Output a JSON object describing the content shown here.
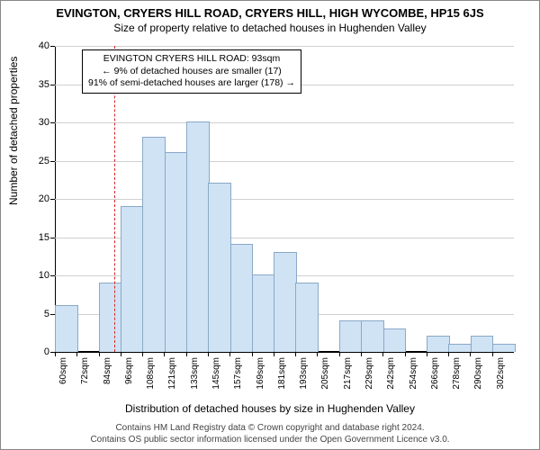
{
  "title_main": "EVINGTON, CRYERS HILL ROAD, CRYERS HILL, HIGH WYCOMBE, HP15 6JS",
  "title_sub": "Size of property relative to detached houses in Hughenden Valley",
  "y_axis": {
    "label": "Number of detached properties",
    "min": 0,
    "max": 40,
    "tick_step": 5,
    "ticks": [
      0,
      5,
      10,
      15,
      20,
      25,
      30,
      35,
      40
    ],
    "grid_color": "#d0d0d0"
  },
  "x_axis": {
    "label": "Distribution of detached houses by size in Hughenden Valley",
    "categories": [
      "60sqm",
      "72sqm",
      "84sqm",
      "96sqm",
      "108sqm",
      "121sqm",
      "133sqm",
      "145sqm",
      "157sqm",
      "169sqm",
      "181sqm",
      "193sqm",
      "205sqm",
      "217sqm",
      "229sqm",
      "242sqm",
      "254sqm",
      "266sqm",
      "278sqm",
      "290sqm",
      "302sqm"
    ]
  },
  "chart": {
    "type": "histogram",
    "bar_color": "#cfe3f5",
    "bar_border_color": "#8aa9c7",
    "values": [
      6,
      0,
      9,
      19,
      28,
      26,
      30,
      22,
      14,
      10,
      13,
      9,
      0,
      4,
      4,
      3,
      0,
      2,
      1,
      2,
      1
    ],
    "background": "#ffffff"
  },
  "reference_line": {
    "position_sqm": 93,
    "color": "#d62728"
  },
  "annotation": {
    "line1": "EVINGTON CRYERS HILL ROAD: 93sqm",
    "line2": "← 9% of detached houses are smaller (17)",
    "line3": "91% of semi-detached houses are larger (178) →"
  },
  "footer": {
    "line1": "Contains HM Land Registry data © Crown copyright and database right 2024.",
    "line2": "Contains OS public sector information licensed under the Open Government Licence v3.0."
  }
}
